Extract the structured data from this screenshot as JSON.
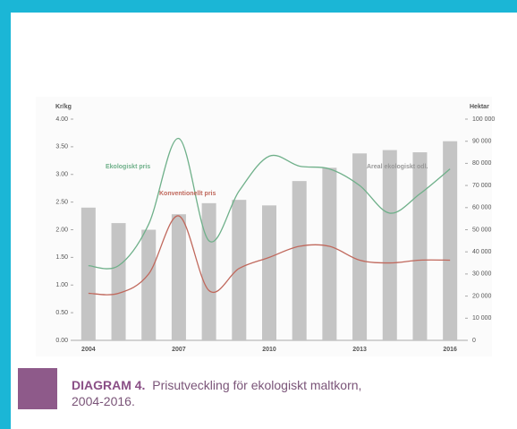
{
  "chart_data": {
    "type": "bar-line",
    "ylabel": "Kr/kg",
    "y2label": "Hektar",
    "categories": [
      "2004",
      null,
      null,
      "2007",
      null,
      null,
      "2010",
      null,
      null,
      "2013",
      null,
      null,
      "2016"
    ],
    "series": [
      {
        "name": "Areal ekologiskt odl.",
        "color": "#c4c4c4",
        "axis": "y2",
        "values": [
          60000,
          53000,
          50000,
          57000,
          62000,
          63500,
          61000,
          72000,
          78000,
          84500,
          86000,
          85000,
          90000
        ]
      },
      {
        "name": "Ekologiskt pris",
        "color": "#6fb08a",
        "values": [
          1.35,
          1.35,
          2.1,
          3.65,
          1.8,
          2.7,
          3.33,
          3.15,
          3.1,
          2.8,
          2.3,
          2.65,
          3.1
        ]
      },
      {
        "name": "Konventionellt pris",
        "color": "#c0685c",
        "values": [
          0.85,
          0.85,
          1.2,
          2.25,
          0.9,
          1.3,
          1.5,
          1.7,
          1.7,
          1.45,
          1.4,
          1.45,
          1.45
        ]
      }
    ],
    "ylim": [
      0,
      4
    ],
    "yticks": [
      {
        "value": 0,
        "label": "0.00"
      },
      {
        "value": 0.5,
        "label": "0.50"
      },
      {
        "value": 1,
        "label": "1.00"
      },
      {
        "value": 1.5,
        "label": "1.50"
      },
      {
        "value": 2,
        "label": "2.00"
      },
      {
        "value": 2.5,
        "label": "2.50"
      },
      {
        "value": 3,
        "label": "3.00"
      },
      {
        "value": 3.5,
        "label": "3.50"
      },
      {
        "value": 4,
        "label": "4.00"
      }
    ],
    "y2lim": [
      0,
      100000
    ],
    "y2ticks": [
      0,
      {
        "value": 10000,
        "label": "10 000"
      },
      {
        "value": 20000,
        "label": "20 000"
      },
      {
        "value": 30000,
        "label": "30 000"
      },
      {
        "value": 40000,
        "label": "40 000"
      },
      {
        "value": 50000,
        "label": "50 000"
      },
      {
        "value": 60000,
        "label": "60 000"
      },
      {
        "value": 70000,
        "label": "70 000"
      },
      {
        "value": 80000,
        "label": "80 000"
      },
      {
        "value": 90000,
        "label": "90 000"
      },
      {
        "value": 100000,
        "label": "100 000"
      }
    ]
  },
  "caption": {
    "label": "DIAGRAM 4.",
    "text": "Prisutveckling för ekologiskt maltkorn, 2004-2016."
  }
}
